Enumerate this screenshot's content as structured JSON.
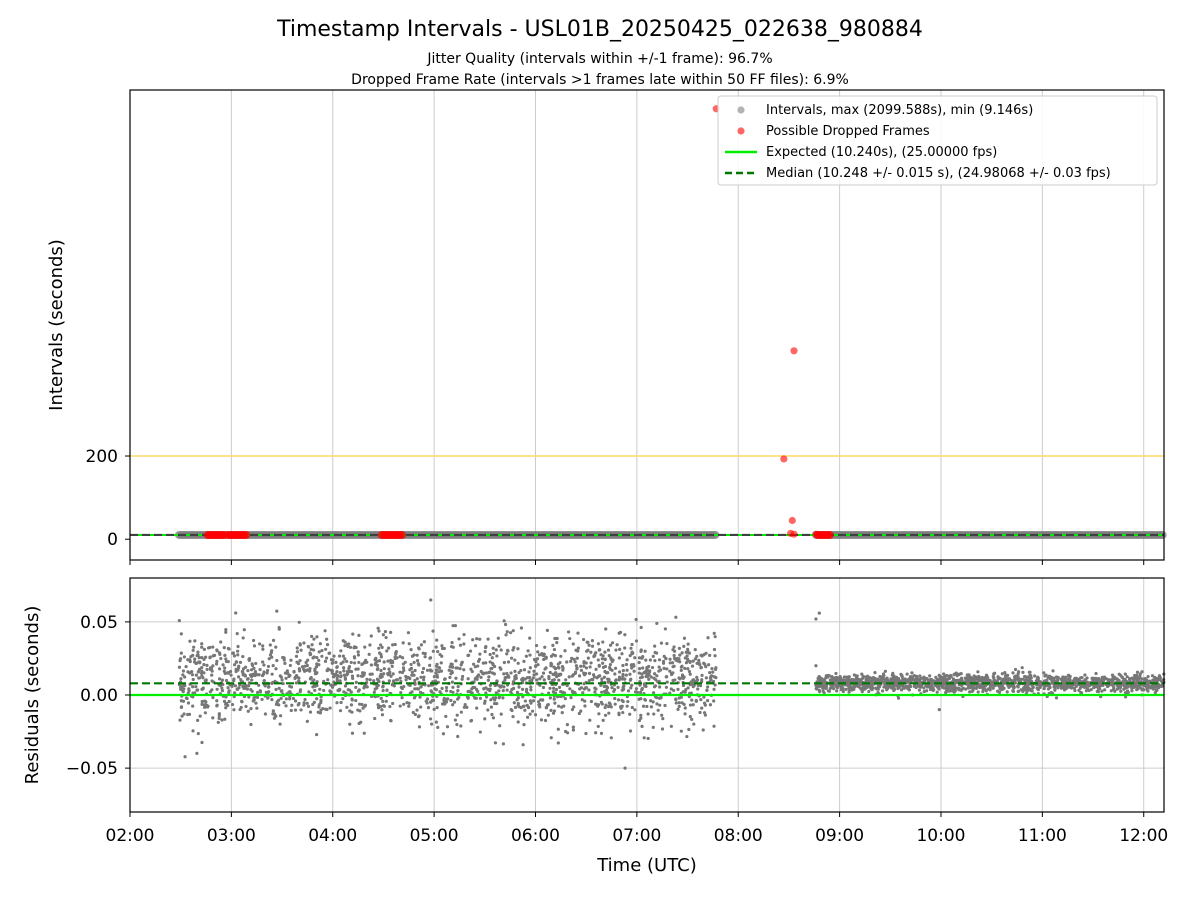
{
  "title": "Timestamp Intervals - USL01B_20250425_022638_980884",
  "subtitle_1": "Jitter Quality (intervals within +/-1 frame): 96.7%",
  "subtitle_2": "Dropped Frame Rate (intervals >1 frames late within 50 FF files): 6.9%",
  "colors": {
    "interval_points": "#7f7f7f",
    "dropped_points": "#ff0000",
    "expected_line": "#00ee00",
    "median_line": "#007700",
    "threshold_line": "#ffd966",
    "grid": "#cccccc",
    "residual_points": "#777777"
  },
  "chart_data": [
    {
      "type": "scatter",
      "panel": "intervals",
      "ylabel": "Intervals (seconds)",
      "xlabel": "",
      "x_unit": "time UTC (hours)",
      "xlim": [
        "02:00",
        "12:12"
      ],
      "ylim": [
        -50,
        1080
      ],
      "y_ticks": [
        0,
        200
      ],
      "x_ticks": [
        "02:00",
        "03:00",
        "04:00",
        "05:00",
        "06:00",
        "07:00",
        "08:00",
        "09:00",
        "10:00",
        "11:00",
        "12:00"
      ],
      "grid": "x-only",
      "threshold_line": 200,
      "legend_position": "top-right",
      "series": [
        {
          "name": "Intervals, max (2099.588s), min (9.146s)",
          "style": "gray circles",
          "segments": [
            {
              "x_start": "02:29",
              "x_end": "07:47",
              "y": 10.24
            },
            {
              "x_start": "08:46",
              "x_end": "12:12",
              "y": 10.24
            }
          ]
        },
        {
          "name": "Possible Dropped Frames",
          "style": "red circles",
          "clusters": [
            {
              "x_start": "02:46",
              "x_end": "02:56",
              "y": 10
            },
            {
              "x_start": "02:58",
              "x_end": "03:10",
              "y": 10
            },
            {
              "x_start": "04:29",
              "x_end": "04:41",
              "y": 10
            },
            {
              "x_start": "08:47",
              "x_end": "08:55",
              "y": 10
            }
          ],
          "points": [
            {
              "x": "07:47",
              "y": 1035
            },
            {
              "x": "08:27",
              "y": 193
            },
            {
              "x": "08:33",
              "y": 453
            },
            {
              "x": "08:32",
              "y": 45
            },
            {
              "x": "08:31",
              "y": 14
            },
            {
              "x": "08:33",
              "y": 12
            },
            {
              "x": "08:46",
              "y": 12
            }
          ]
        },
        {
          "name": "Expected (10.240s), (25.00000 fps)",
          "style": "green line",
          "y": 10.24
        },
        {
          "name": "Median (10.248 +/- 0.015 s), (24.98068 +/- 0.03 fps)",
          "style": "dark green dashed line",
          "y": 10.248
        }
      ]
    },
    {
      "type": "scatter",
      "panel": "residuals",
      "ylabel": "Residuals (seconds)",
      "xlabel": "Time (UTC)",
      "xlim": [
        "02:00",
        "12:12"
      ],
      "ylim": [
        -0.08,
        0.08
      ],
      "y_ticks": [
        0.05,
        0.0,
        -0.05
      ],
      "y_tick_labels": [
        "0.05",
        "0.00",
        "−0.05"
      ],
      "x_ticks": [
        "02:00",
        "03:00",
        "04:00",
        "05:00",
        "06:00",
        "07:00",
        "08:00",
        "09:00",
        "10:00",
        "11:00",
        "12:00"
      ],
      "grid": "both",
      "lines": [
        {
          "name": "expected",
          "y": 0.0,
          "style": "green line"
        },
        {
          "name": "median",
          "y": 0.008,
          "style": "dark green dashed line"
        }
      ],
      "series": [
        {
          "name": "residuals",
          "segments": [
            {
              "x_start": "02:29",
              "x_end": "07:47",
              "center": 0.01,
              "spread_sd": 0.015,
              "min": -0.05,
              "max": 0.065
            },
            {
              "x_start": "08:46",
              "x_end": "12:12",
              "center": 0.008,
              "spread_sd": 0.003,
              "min": -0.011,
              "max": 0.056
            }
          ]
        }
      ]
    }
  ]
}
